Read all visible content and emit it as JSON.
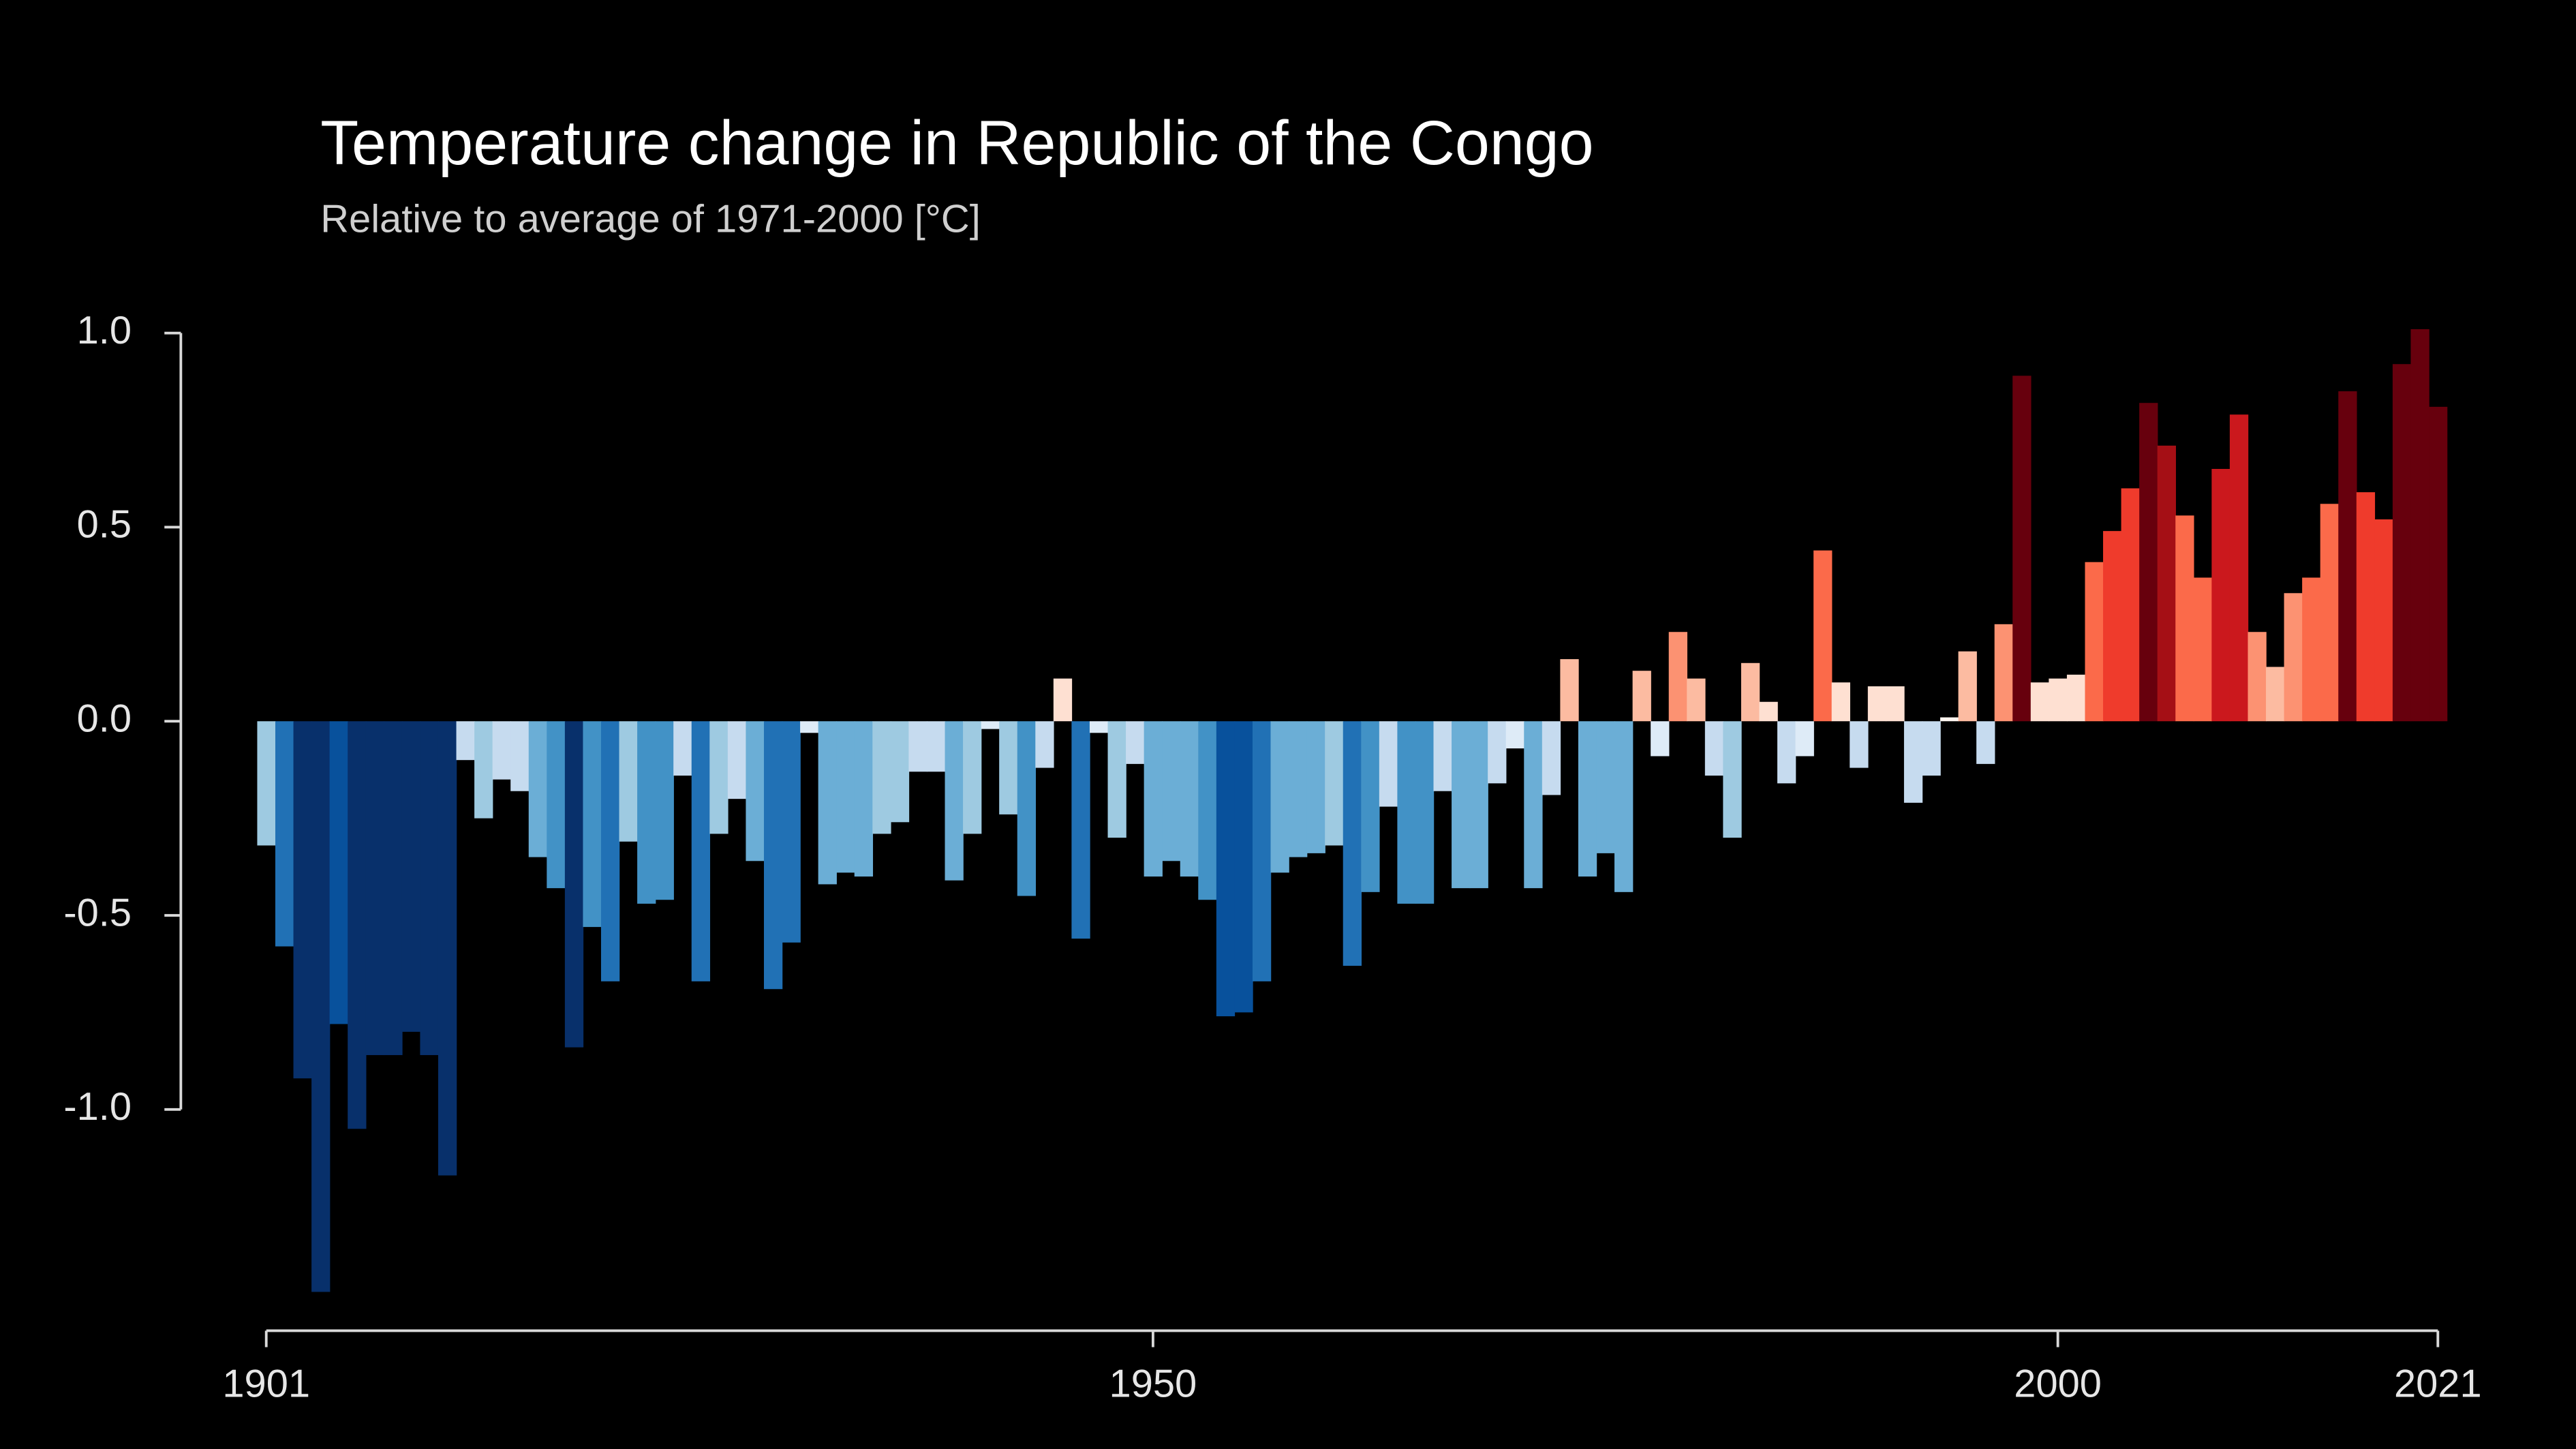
{
  "chart_data": {
    "type": "bar",
    "title": "Temperature change in Republic of the Congo",
    "subtitle": "Relative to average of 1971-2000  [°C]",
    "x": [
      1901,
      1902,
      1903,
      1904,
      1905,
      1906,
      1907,
      1908,
      1909,
      1910,
      1911,
      1912,
      1913,
      1914,
      1915,
      1916,
      1917,
      1918,
      1919,
      1920,
      1921,
      1922,
      1923,
      1924,
      1925,
      1926,
      1927,
      1928,
      1929,
      1930,
      1931,
      1932,
      1933,
      1934,
      1935,
      1936,
      1937,
      1938,
      1939,
      1940,
      1941,
      1942,
      1943,
      1944,
      1945,
      1946,
      1947,
      1948,
      1949,
      1950,
      1951,
      1952,
      1953,
      1954,
      1955,
      1956,
      1957,
      1958,
      1959,
      1960,
      1961,
      1962,
      1963,
      1964,
      1965,
      1966,
      1967,
      1968,
      1969,
      1970,
      1971,
      1972,
      1973,
      1974,
      1975,
      1976,
      1977,
      1978,
      1979,
      1980,
      1981,
      1982,
      1983,
      1984,
      1985,
      1986,
      1987,
      1988,
      1989,
      1990,
      1991,
      1992,
      1993,
      1994,
      1995,
      1996,
      1997,
      1998,
      1999,
      2000,
      2001,
      2002,
      2003,
      2004,
      2005,
      2006,
      2007,
      2008,
      2009,
      2010,
      2011,
      2012,
      2013,
      2014,
      2015,
      2016,
      2017,
      2018,
      2019,
      2020,
      2021
    ],
    "values": [
      -0.32,
      -0.58,
      -0.92,
      -1.47,
      -0.78,
      -1.05,
      -0.86,
      -0.86,
      -0.8,
      -0.86,
      -1.17,
      -0.1,
      -0.25,
      -0.15,
      -0.18,
      -0.35,
      -0.43,
      -0.84,
      -0.53,
      -0.67,
      -0.31,
      -0.47,
      -0.46,
      -0.14,
      -0.67,
      -0.29,
      -0.2,
      -0.36,
      -0.69,
      -0.57,
      -0.03,
      -0.42,
      -0.39,
      -0.4,
      -0.29,
      -0.26,
      -0.13,
      -0.13,
      -0.41,
      -0.29,
      -0.02,
      -0.24,
      -0.45,
      -0.12,
      0.11,
      -0.56,
      -0.03,
      -0.3,
      -0.11,
      -0.4,
      -0.36,
      -0.4,
      -0.46,
      -0.76,
      -0.75,
      -0.67,
      -0.39,
      -0.35,
      -0.34,
      -0.32,
      -0.63,
      -0.44,
      -0.22,
      -0.47,
      -0.47,
      -0.18,
      -0.43,
      -0.43,
      -0.16,
      -0.07,
      -0.43,
      -0.19,
      0.16,
      -0.4,
      -0.34,
      -0.44,
      0.13,
      -0.09,
      0.23,
      0.11,
      -0.14,
      -0.3,
      0.15,
      0.05,
      -0.16,
      -0.09,
      0.44,
      0.1,
      -0.12,
      0.09,
      0.09,
      -0.21,
      -0.14,
      0.01,
      0.18,
      -0.11,
      0.25,
      0.89,
      0.1,
      0.11,
      0.12,
      0.41,
      0.49,
      0.6,
      0.82,
      0.71,
      0.53,
      0.37,
      0.65,
      0.79,
      0.23,
      0.14,
      0.33,
      0.37,
      0.56,
      0.85,
      0.59,
      0.52,
      0.92,
      1.01,
      0.81
    ],
    "colors": [
      "#9ecae1",
      "#2171b5",
      "#08306b",
      "#08306b",
      "#08519c",
      "#08306b",
      "#08306b",
      "#08306b",
      "#08306b",
      "#08306b",
      "#08306b",
      "#c6dbef",
      "#9ecae1",
      "#c6dbef",
      "#c6dbef",
      "#6baed6",
      "#4292c6",
      "#08306b",
      "#4292c6",
      "#2171b5",
      "#9ecae1",
      "#4292c6",
      "#4292c6",
      "#c6dbef",
      "#2171b5",
      "#9ecae1",
      "#c6dbef",
      "#6baed6",
      "#2171b5",
      "#2171b5",
      "#deebf7",
      "#6baed6",
      "#6baed6",
      "#6baed6",
      "#9ecae1",
      "#9ecae1",
      "#c6dbef",
      "#c6dbef",
      "#6baed6",
      "#9ecae1",
      "#deebf7",
      "#9ecae1",
      "#4292c6",
      "#c6dbef",
      "#fee0d2",
      "#2171b5",
      "#deebf7",
      "#9ecae1",
      "#c6dbef",
      "#6baed6",
      "#6baed6",
      "#6baed6",
      "#4292c6",
      "#08519c",
      "#08519c",
      "#2171b5",
      "#6baed6",
      "#6baed6",
      "#6baed6",
      "#9ecae1",
      "#2171b5",
      "#4292c6",
      "#c6dbef",
      "#4292c6",
      "#4292c6",
      "#c6dbef",
      "#6baed6",
      "#6baed6",
      "#c6dbef",
      "#deebf7",
      "#6baed6",
      "#c6dbef",
      "#fcbba1",
      "#6baed6",
      "#6baed6",
      "#6baed6",
      "#fcbba1",
      "#deebf7",
      "#fc9272",
      "#fcbba1",
      "#c6dbef",
      "#9ecae1",
      "#fcbba1",
      "#fee0d2",
      "#c6dbef",
      "#deebf7",
      "#fb6a4a",
      "#fee0d2",
      "#c6dbef",
      "#fee0d2",
      "#fee0d2",
      "#c6dbef",
      "#c6dbef",
      "#fff5f0",
      "#fcbba1",
      "#c6dbef",
      "#fc9272",
      "#67000d",
      "#fee0d2",
      "#fee0d2",
      "#fee0d2",
      "#fb6a4a",
      "#ef3b2c",
      "#ef3b2c",
      "#67000d",
      "#a50f15",
      "#fb6a4a",
      "#fb6a4a",
      "#cb181d",
      "#cb181d",
      "#fc9272",
      "#fcbba1",
      "#fc9272",
      "#fb6a4a",
      "#fb6a4a",
      "#67000d",
      "#ef3b2c",
      "#ef3b2c",
      "#67000d",
      "#67000d",
      "#67000d"
    ],
    "xlim": [
      1901,
      2021
    ],
    "xticks": [
      1901,
      1950,
      2000,
      2021
    ],
    "ylim": [
      -1.57,
      1.02
    ],
    "yticks": [
      {
        "value": 1,
        "label": "1.0"
      },
      0.5,
      {
        "value": 0,
        "label": "0.0"
      },
      -0.5,
      {
        "value": -1,
        "label": "-1.0"
      }
    ]
  }
}
